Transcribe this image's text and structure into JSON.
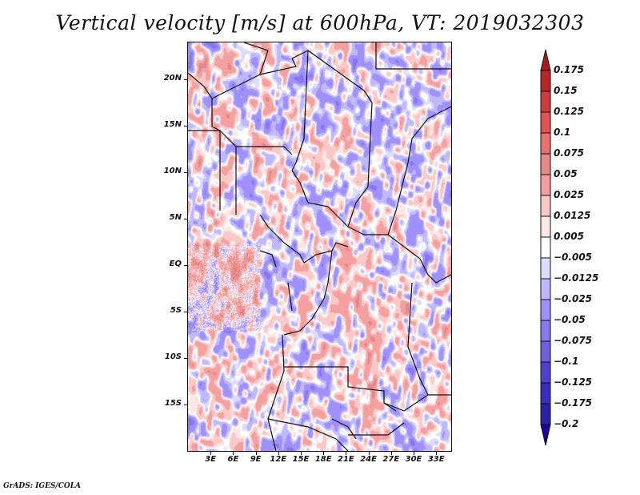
{
  "title": "Vertical velocity [m/s] at 600hPa, VT: 2019032303",
  "credit": "GrADS: IGES/COLA",
  "chart_data": {
    "type": "heatmap",
    "title": "Vertical velocity [m/s] at 600hPa, VT: 2019032303",
    "variable": "Vertical velocity",
    "units": "m/s",
    "level": "600hPa",
    "valid_time": "2019032303",
    "xlabel": "",
    "ylabel": "",
    "xlim": [
      0,
      35
    ],
    "ylim": [
      -20,
      24
    ],
    "x_ticks": [
      {
        "value": 3,
        "label": "3E"
      },
      {
        "value": 6,
        "label": "6E"
      },
      {
        "value": 9,
        "label": "9E"
      },
      {
        "value": 12,
        "label": "12E"
      },
      {
        "value": 15,
        "label": "15E"
      },
      {
        "value": 18,
        "label": "18E"
      },
      {
        "value": 21,
        "label": "21E"
      },
      {
        "value": 24,
        "label": "24E"
      },
      {
        "value": 27,
        "label": "27E"
      },
      {
        "value": 30,
        "label": "30E"
      },
      {
        "value": 33,
        "label": "33E"
      }
    ],
    "y_ticks": [
      {
        "value": 20,
        "label": "20N"
      },
      {
        "value": 15,
        "label": "15N"
      },
      {
        "value": 10,
        "label": "10N"
      },
      {
        "value": 5,
        "label": "5N"
      },
      {
        "value": 0,
        "label": "EQ"
      },
      {
        "value": -5,
        "label": "5S"
      },
      {
        "value": -10,
        "label": "10S"
      },
      {
        "value": -15,
        "label": "15S"
      }
    ],
    "colorbar": {
      "orientation": "vertical",
      "placement": "right",
      "extend": "both",
      "levels": [
        0.175,
        0.15,
        0.125,
        0.1,
        0.075,
        0.05,
        0.025,
        0.0125,
        0.005,
        -0.005,
        -0.0125,
        -0.025,
        -0.05,
        -0.075,
        -0.1,
        -0.125,
        -0.175,
        -0.2
      ],
      "labels": [
        "0.175",
        "0.15",
        "0.125",
        "0.1",
        "0.075",
        "0.05",
        "0.025",
        "0.0125",
        "0.005",
        "−0.005",
        "−0.0125",
        "−0.025",
        "−0.05",
        "−0.075",
        "−0.1",
        "−0.125",
        "−0.175",
        "−0.2"
      ],
      "colors_top_to_bottom": [
        "#a61c1c",
        "#b82828",
        "#cc3c3c",
        "#e05252",
        "#e87070",
        "#e28a8a",
        "#f5a0a0",
        "#fbc8c8",
        "#fde6e6",
        "#ffffff",
        "#dcdcfc",
        "#c0b8fc",
        "#a090fc",
        "#8878ec",
        "#7060dc",
        "#4c40cc",
        "#3c2cbc",
        "#2c20a4",
        "#2000a0"
      ]
    },
    "grid": false,
    "map_region": "Central Africa",
    "notes": "Field is a noisy mix of weak ascent (red) and descent (blue), values mostly between -0.05 and 0.05 m/s, with stronger bands locally."
  }
}
